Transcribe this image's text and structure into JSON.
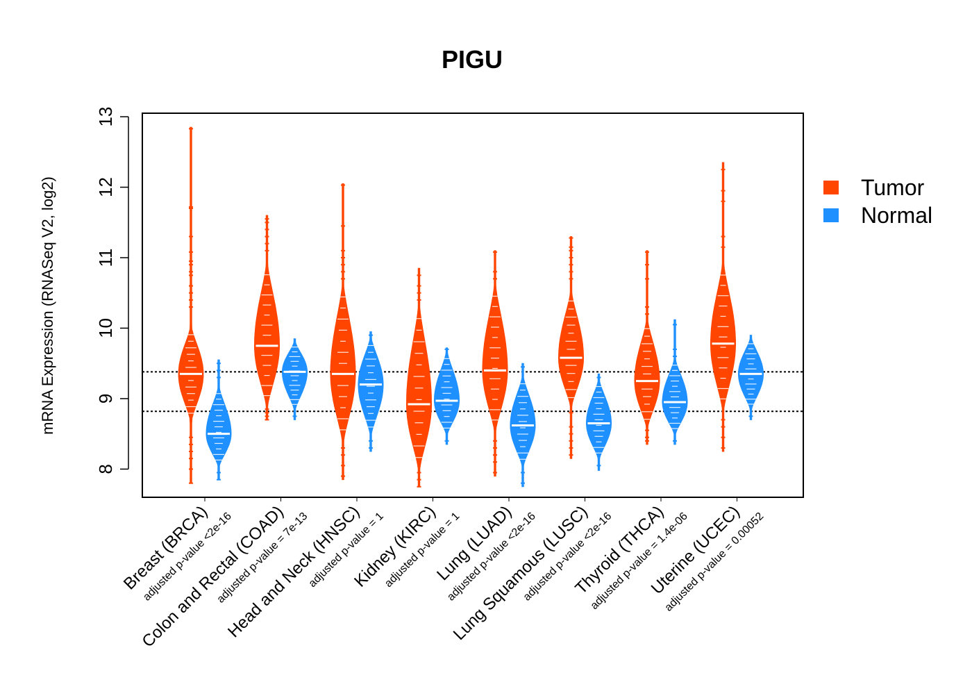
{
  "chart_data": {
    "type": "violin",
    "title": "PIGU",
    "ylabel": "mRNA Expression (RNASeq V2, log2)",
    "xlabel": "",
    "ylim": [
      7.6,
      13.05
    ],
    "yticks": [
      8,
      9,
      10,
      11,
      12,
      13
    ],
    "reference_lines": [
      9.38,
      8.82
    ],
    "colors": {
      "Tumor": "#FF4500",
      "Normal": "#1E90FF"
    },
    "legend": {
      "position": "right",
      "entries": [
        "Tumor",
        "Normal"
      ]
    },
    "categories": [
      {
        "name": "Breast (BRCA)",
        "pvalue_label": "adjusted p-value <2e-16",
        "tumor": {
          "median": 9.35,
          "min": 7.8,
          "max": 12.85,
          "core": [
            8.7,
            10.0
          ],
          "outliers": [
            12.83,
            11.72,
            11.7,
            11.3,
            11.08,
            10.95,
            10.9,
            10.8,
            10.75,
            10.6,
            10.5,
            10.4,
            10.3,
            8.45,
            8.35,
            8.25,
            8.15,
            8.0,
            7.8
          ]
        },
        "normal": {
          "median": 8.5,
          "min": 7.85,
          "max": 9.55,
          "core": [
            8.05,
            9.15
          ],
          "outliers": [
            9.5,
            9.4,
            9.3,
            7.95,
            7.85
          ]
        }
      },
      {
        "name": "Colon and Rectal (COAD)",
        "pvalue_label": "adjusted p-value = 7e-13",
        "tumor": {
          "median": 9.75,
          "min": 8.7,
          "max": 11.6,
          "core": [
            8.9,
            10.9
          ],
          "outliers": [
            11.55,
            11.5,
            11.4,
            11.3,
            11.2,
            11.1,
            8.85,
            8.8,
            8.75,
            8.7
          ]
        },
        "normal": {
          "median": 9.38,
          "min": 8.7,
          "max": 9.85,
          "core": [
            8.85,
            9.8
          ],
          "outliers": [
            8.75
          ]
        }
      },
      {
        "name": "Head and Neck (HNSC)",
        "pvalue_label": "adjusted p-value = 1",
        "tumor": {
          "median": 9.35,
          "min": 7.85,
          "max": 12.05,
          "core": [
            8.4,
            10.6
          ],
          "outliers": [
            12.03,
            11.45,
            11.1,
            11.0,
            10.9,
            10.8,
            10.7,
            8.3,
            8.2,
            8.05,
            7.9
          ]
        },
        "normal": {
          "median": 9.2,
          "min": 8.25,
          "max": 9.95,
          "core": [
            8.5,
            9.85
          ],
          "outliers": [
            9.9,
            8.4,
            8.3
          ]
        }
      },
      {
        "name": "Kidney (KIRC)",
        "pvalue_label": "adjusted p-value = 1",
        "tumor": {
          "median": 8.92,
          "min": 7.75,
          "max": 10.85,
          "core": [
            8.0,
            10.3
          ],
          "outliers": [
            10.75,
            10.6,
            10.5,
            10.4,
            7.95,
            7.85,
            7.75
          ]
        },
        "normal": {
          "median": 8.97,
          "min": 8.35,
          "max": 9.72,
          "core": [
            8.5,
            9.65
          ],
          "outliers": [
            9.7,
            8.4
          ]
        }
      },
      {
        "name": "Lung (LUAD)",
        "pvalue_label": "adjusted p-value <2e-16",
        "tumor": {
          "median": 9.4,
          "min": 7.9,
          "max": 11.1,
          "core": [
            8.55,
            10.6
          ],
          "outliers": [
            11.08,
            10.8,
            10.7,
            8.4,
            8.3,
            8.2,
            8.1,
            7.95
          ]
        },
        "normal": {
          "median": 8.62,
          "min": 7.75,
          "max": 9.5,
          "core": [
            8.05,
            9.3
          ],
          "outliers": [
            9.45,
            7.95,
            7.8
          ]
        }
      },
      {
        "name": "Lung Squamous (LUSC)",
        "pvalue_label": "adjusted p-value <2e-16",
        "tumor": {
          "median": 9.58,
          "min": 8.15,
          "max": 11.3,
          "core": [
            8.9,
            10.5
          ],
          "outliers": [
            11.28,
            11.15,
            11.1,
            11.0,
            10.9,
            10.8,
            10.7,
            8.8,
            8.6,
            8.5,
            8.4,
            8.3,
            8.2
          ]
        },
        "normal": {
          "median": 8.65,
          "min": 7.98,
          "max": 9.35,
          "core": [
            8.15,
            9.25
          ],
          "outliers": [
            9.3,
            8.05
          ]
        }
      },
      {
        "name": "Thyroid (THCA)",
        "pvalue_label": "adjusted p-value = 1.4e-06",
        "tumor": {
          "median": 9.25,
          "min": 8.35,
          "max": 11.1,
          "core": [
            8.6,
            10.1
          ],
          "outliers": [
            11.08,
            10.9,
            10.7,
            10.3,
            10.2,
            8.55,
            8.45,
            8.4
          ]
        },
        "normal": {
          "median": 8.95,
          "min": 8.35,
          "max": 10.12,
          "core": [
            8.5,
            9.55
          ],
          "outliers": [
            10.05,
            9.7,
            9.6,
            8.4
          ]
        }
      },
      {
        "name": "Uterine (UCEC)",
        "pvalue_label": "adjusted p-value = 0.00052",
        "tumor": {
          "median": 9.78,
          "min": 8.25,
          "max": 12.35,
          "core": [
            8.85,
            10.9
          ],
          "outliers": [
            12.25,
            11.95,
            11.8,
            11.3,
            11.15,
            8.7,
            8.6,
            8.45,
            8.3
          ]
        },
        "normal": {
          "median": 9.35,
          "min": 8.7,
          "max": 9.9,
          "core": [
            8.85,
            9.85
          ],
          "outliers": [
            8.75
          ]
        }
      }
    ]
  }
}
